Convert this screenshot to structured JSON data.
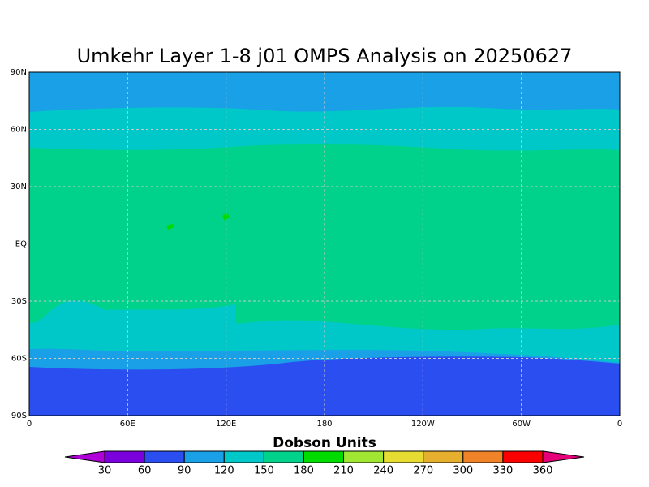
{
  "title": "Umkehr Layer 1-8 j01 OMPS Analysis on 20250627",
  "map": {
    "lat_labels": [
      "90N",
      "60N",
      "30N",
      "EQ",
      "30S",
      "60S",
      "90S"
    ],
    "lon_labels": [
      "0",
      "60E",
      "120E",
      "180",
      "120W",
      "60W",
      "0"
    ]
  },
  "colorbar": {
    "title": "Dobson Units",
    "levels": [
      30,
      60,
      90,
      120,
      150,
      180,
      210,
      240,
      270,
      300,
      330,
      360
    ],
    "colors": [
      "#b000d8",
      "#7a00dc",
      "#2a4ef0",
      "#1aa0e6",
      "#00c8c8",
      "#00d28c",
      "#00dc00",
      "#a0e632",
      "#e6dc32",
      "#e6af2d",
      "#f08228",
      "#fa0000",
      "#e6007a"
    ]
  }
}
